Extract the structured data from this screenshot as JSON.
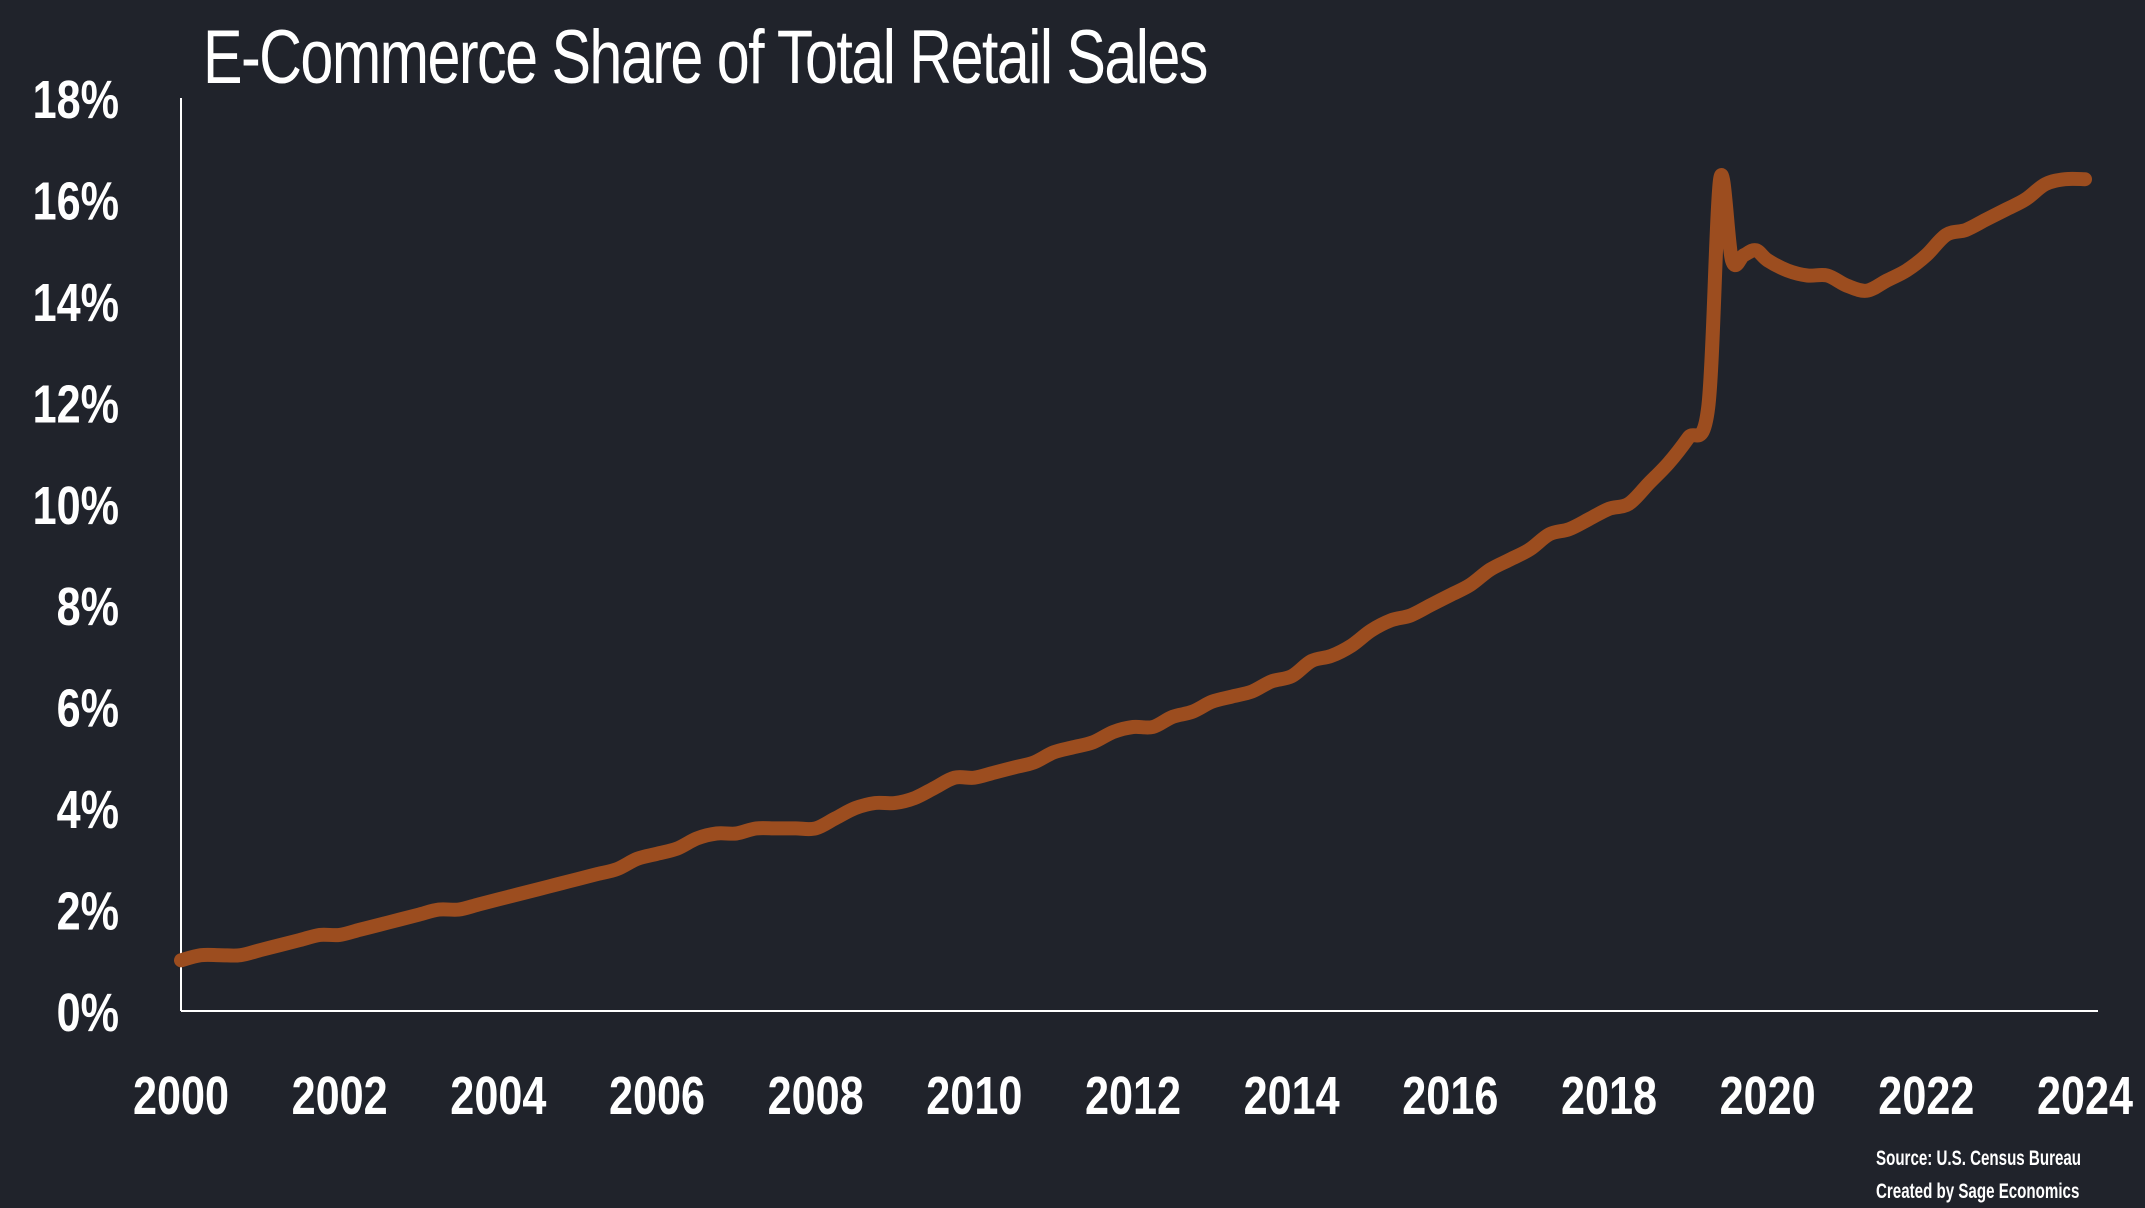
{
  "chart_data": {
    "type": "line",
    "title": "E-Commerce Share of Total Retail Sales",
    "xlabel": "",
    "ylabel": "",
    "xlim": [
      2000,
      2024
    ],
    "ylim": [
      0,
      18
    ],
    "grid": false,
    "x_ticks": [
      "2000",
      "2002",
      "2004",
      "2006",
      "2008",
      "2010",
      "2012",
      "2014",
      "2016",
      "2018",
      "2020",
      "2022",
      "2024"
    ],
    "y_ticks": [
      "0%",
      "2%",
      "4%",
      "6%",
      "8%",
      "10%",
      "12%",
      "14%",
      "16%",
      "18%"
    ],
    "series": [
      {
        "name": "E-Commerce share of total retail sales (%)",
        "color": "#9c4d1f",
        "x": [
          2000.0,
          2000.25,
          2000.5,
          2000.75,
          2001.0,
          2001.25,
          2001.5,
          2001.75,
          2002.0,
          2002.25,
          2002.5,
          2002.75,
          2003.0,
          2003.25,
          2003.5,
          2003.75,
          2004.0,
          2004.25,
          2004.5,
          2004.75,
          2005.0,
          2005.25,
          2005.5,
          2005.75,
          2006.0,
          2006.25,
          2006.5,
          2006.75,
          2007.0,
          2007.25,
          2007.5,
          2007.75,
          2008.0,
          2008.25,
          2008.5,
          2008.75,
          2009.0,
          2009.25,
          2009.5,
          2009.75,
          2010.0,
          2010.25,
          2010.5,
          2010.75,
          2011.0,
          2011.25,
          2011.5,
          2011.75,
          2012.0,
          2012.25,
          2012.5,
          2012.75,
          2013.0,
          2013.25,
          2013.5,
          2013.75,
          2014.0,
          2014.25,
          2014.5,
          2014.75,
          2015.0,
          2015.25,
          2015.5,
          2015.75,
          2016.0,
          2016.25,
          2016.5,
          2016.75,
          2017.0,
          2017.25,
          2017.5,
          2017.75,
          2018.0,
          2018.25,
          2018.5,
          2018.75,
          2019.0,
          2019.25,
          2019.4,
          2019.55,
          2019.7,
          2019.85,
          2020.0,
          2020.25,
          2020.5,
          2020.75,
          2021.0,
          2021.25,
          2021.5,
          2021.75,
          2022.0,
          2022.25,
          2022.5,
          2022.75,
          2023.0,
          2023.25,
          2023.5,
          2023.75,
          2024.0
        ],
        "values": [
          1.0,
          1.1,
          1.1,
          1.1,
          1.2,
          1.3,
          1.4,
          1.5,
          1.5,
          1.6,
          1.7,
          1.8,
          1.9,
          2.0,
          2.0,
          2.1,
          2.2,
          2.3,
          2.4,
          2.5,
          2.6,
          2.7,
          2.8,
          3.0,
          3.1,
          3.2,
          3.4,
          3.5,
          3.5,
          3.6,
          3.6,
          3.6,
          3.6,
          3.8,
          4.0,
          4.1,
          4.1,
          4.2,
          4.4,
          4.6,
          4.6,
          4.7,
          4.8,
          4.9,
          5.1,
          5.2,
          5.3,
          5.5,
          5.6,
          5.6,
          5.8,
          5.9,
          6.1,
          6.2,
          6.3,
          6.5,
          6.6,
          6.9,
          7.0,
          7.2,
          7.5,
          7.7,
          7.8,
          8.0,
          8.2,
          8.4,
          8.7,
          8.9,
          9.1,
          9.4,
          9.5,
          9.7,
          9.9,
          10.0,
          10.4,
          10.8,
          11.3,
          11.9,
          16.4,
          14.8,
          14.9,
          15.0,
          14.8,
          14.6,
          14.5,
          14.5,
          14.3,
          14.2,
          14.4,
          14.6,
          14.9,
          15.3,
          15.4,
          15.6,
          15.8,
          16.0,
          16.3,
          16.4,
          16.4
        ]
      }
    ]
  },
  "footer": {
    "source": "Source: U.S. Census Bureau",
    "credit": "Created by Sage Economics"
  }
}
